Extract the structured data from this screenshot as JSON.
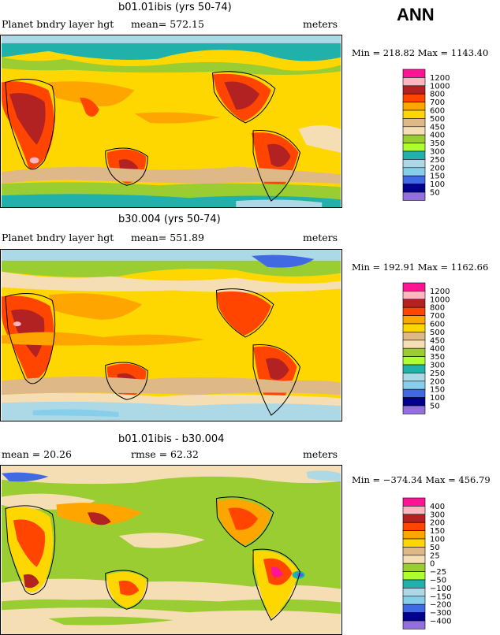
{
  "season": "ANN",
  "chart_data": [
    {
      "type": "heatmap",
      "title": "b01.01ibis (yrs 50-74)",
      "variable": "Planet bndry layer hgt",
      "mean_text": "mean=  572.15",
      "units": "meters",
      "minmax_text": "Min = 218.82  Max = 1143.40",
      "min": 218.82,
      "max": 1143.4,
      "mean": 572.15,
      "levels": [
        "1200",
        "1000",
        "800",
        "700",
        "600",
        "500",
        "450",
        "400",
        "350",
        "300",
        "250",
        "200",
        "150",
        "100",
        "50"
      ],
      "colors": [
        "#ff1493",
        "#ffb6c1",
        "#b22222",
        "#ff4500",
        "#ffa500",
        "#ffd700",
        "#deb887",
        "#f5deb3",
        "#9acd32",
        "#adff2f",
        "#20b2aa",
        "#add8e6",
        "#87ceeb",
        "#4169e1",
        "#00008b",
        "#9370db"
      ]
    },
    {
      "type": "heatmap",
      "title": "b30.004 (yrs 50-74)",
      "variable": "Planet bndry layer hgt",
      "mean_text": "mean=  551.89",
      "units": "meters",
      "minmax_text": "Min = 192.91  Max = 1162.66",
      "min": 192.91,
      "max": 1162.66,
      "mean": 551.89,
      "levels": [
        "1200",
        "1000",
        "800",
        "700",
        "600",
        "500",
        "450",
        "400",
        "350",
        "300",
        "250",
        "200",
        "150",
        "100",
        "50"
      ],
      "colors": [
        "#ff1493",
        "#ffb6c1",
        "#b22222",
        "#ff4500",
        "#ffa500",
        "#ffd700",
        "#deb887",
        "#f5deb3",
        "#9acd32",
        "#adff2f",
        "#20b2aa",
        "#add8e6",
        "#87ceeb",
        "#4169e1",
        "#00008b",
        "#9370db"
      ]
    },
    {
      "type": "heatmap",
      "title": "b01.01ibis - b30.004",
      "mean_text": "mean =   20.26",
      "rmse_text": "rmse =   62.32",
      "units": "meters",
      "minmax_text": "Min = −374.34  Max = 456.79",
      "min": -374.34,
      "max": 456.79,
      "mean": 20.26,
      "rmse": 62.32,
      "levels": [
        "400",
        "300",
        "200",
        "150",
        "100",
        "50",
        "25",
        "0",
        "−25",
        "−50",
        "−100",
        "−150",
        "−200",
        "−300",
        "−400"
      ],
      "colors": [
        "#ff1493",
        "#ffb6c1",
        "#b22222",
        "#ff4500",
        "#ffa500",
        "#ffd700",
        "#deb887",
        "#f5deb3",
        "#9acd32",
        "#adff2f",
        "#20b2aa",
        "#add8e6",
        "#87ceeb",
        "#4169e1",
        "#00008b",
        "#9370db"
      ]
    }
  ]
}
